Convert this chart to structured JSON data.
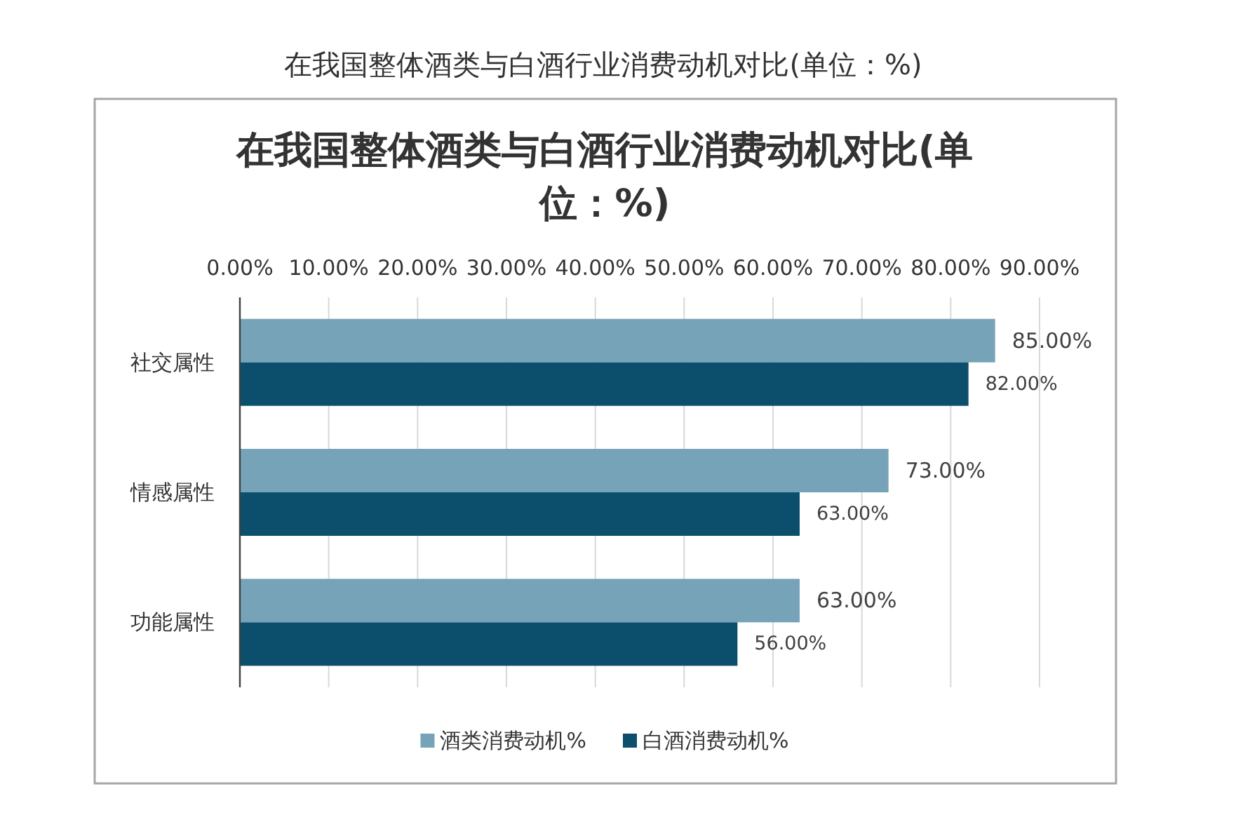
{
  "chart_data": {
    "type": "bar",
    "orientation": "horizontal",
    "title": "在我国整体酒类与白酒行业消费动机对比(单位：%)",
    "annotations": [
      "在我国整体酒类与白酒行业消费动机对比(单位：%)"
    ],
    "categories": [
      "社交属性",
      "情感属性",
      "功能属性"
    ],
    "series": [
      {
        "name": "酒类消费动机%",
        "color": "#76a3b8",
        "values": [
          85,
          73,
          63
        ],
        "value_labels": [
          "85.00%",
          "73.00%",
          "63.00%"
        ]
      },
      {
        "name": "白酒消费动机%",
        "color": "#0b4f6c",
        "values": [
          82,
          63,
          56
        ],
        "value_labels": [
          "82.00%",
          "63.00%",
          "56.00%"
        ]
      }
    ],
    "xlim": [
      0,
      90
    ],
    "xticks": [
      {
        "value": 0,
        "label": "0.00%"
      },
      {
        "value": 10,
        "label": "10.00%"
      },
      {
        "value": 20,
        "label": "20.00%"
      },
      {
        "value": 30,
        "label": "30.00%"
      },
      {
        "value": 40,
        "label": "40.00%"
      },
      {
        "value": 50,
        "label": "50.00%"
      },
      {
        "value": 60,
        "label": "60.00%"
      },
      {
        "value": 70,
        "label": "70.00%"
      },
      {
        "value": 80,
        "label": "80.00%"
      },
      {
        "value": 90,
        "label": "90.00%"
      }
    ],
    "grid": "x",
    "legend": "bottom"
  }
}
